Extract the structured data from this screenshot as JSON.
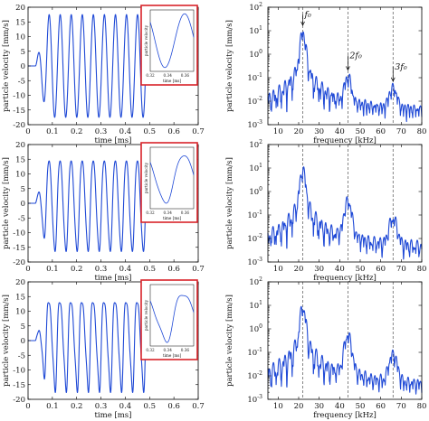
{
  "colors": {
    "trace": "#1f49d6",
    "inset_border": "#d8232a",
    "marker_lines": "#555555"
  },
  "chart_data": [
    {
      "type": "line",
      "row": 1,
      "panel": "time",
      "xlabel": "time [ms]",
      "ylabel": "particle velocity [mm/s]",
      "xlim": [
        0,
        0.7
      ],
      "ylim": [
        -20,
        20
      ],
      "xticks": [
        "0",
        "0.1",
        "0.2",
        "0.3",
        "0.4",
        "0.5",
        "0.6",
        "0.7"
      ],
      "yticks": [
        "20",
        "15",
        "10",
        "5",
        "0",
        "-5",
        "-10",
        "-15",
        "-20"
      ],
      "signal": {
        "onset_ms": 0.03,
        "end_ms": 0.51,
        "frequency_khz": 22,
        "amplitude": 17.5,
        "distortion": 0.0
      },
      "inset": {
        "ylabel": "particle velocity",
        "xlabel": "time [ms]",
        "xticks": [
          "0.32",
          "0.34",
          "0.36"
        ],
        "xlim": [
          0.32,
          0.37
        ]
      }
    },
    {
      "type": "line",
      "row": 1,
      "panel": "spectrum",
      "xlabel": "frequency [kHz]",
      "ylabel": "particle velocity [mm/s]",
      "xlim": [
        5,
        80
      ],
      "ylim_log10": [
        -3,
        2
      ],
      "xticks": [
        "10",
        "20",
        "30",
        "40",
        "50",
        "60",
        "70",
        "80"
      ],
      "yticks": [
        {
          "base": "10",
          "exp": "2"
        },
        {
          "base": "10",
          "exp": "1"
        },
        {
          "base": "10",
          "exp": "0"
        },
        {
          "base": "10",
          "exp": "-1"
        },
        {
          "base": "10",
          "exp": "-2"
        },
        {
          "base": "10",
          "exp": "-3"
        }
      ],
      "peaks": [
        {
          "freq_khz": 22,
          "value": 12
        },
        {
          "freq_khz": 44,
          "value": 0.15
        },
        {
          "freq_khz": 66,
          "value": 0.05
        }
      ],
      "annotations": [
        {
          "text": "f₀",
          "freq_khz": 22
        },
        {
          "text": "2f₀",
          "freq_khz": 44
        },
        {
          "text": "3f₀",
          "freq_khz": 66
        }
      ],
      "marker_lines_khz": [
        22,
        44,
        66
      ]
    },
    {
      "type": "line",
      "row": 2,
      "panel": "time",
      "xlabel": "time [ms]",
      "ylabel": "particle velocity [mm/s]",
      "xlim": [
        0,
        0.7
      ],
      "ylim": [
        -20,
        20
      ],
      "xticks": [
        "0",
        "0.1",
        "0.2",
        "0.3",
        "0.4",
        "0.5",
        "0.6",
        "0.7"
      ],
      "yticks": [
        "20",
        "15",
        "10",
        "5",
        "0",
        "-5",
        "-10",
        "-15",
        "-20"
      ],
      "signal": {
        "onset_ms": 0.03,
        "end_ms": 0.51,
        "frequency_khz": 22,
        "amplitude": 15.5,
        "distortion": 0.25
      },
      "inset": {
        "ylabel": "particle velocity",
        "xlabel": "time [ms]",
        "xticks": [
          "0.32",
          "0.34",
          "0.36"
        ],
        "xlim": [
          0.32,
          0.37
        ]
      }
    },
    {
      "type": "line",
      "row": 2,
      "panel": "spectrum",
      "xlabel": "frequency [kHz]",
      "ylabel": "particle velocity [mm/s]",
      "xlim": [
        5,
        80
      ],
      "ylim_log10": [
        -3,
        2
      ],
      "xticks": [
        "10",
        "20",
        "30",
        "40",
        "50",
        "60",
        "70",
        "80"
      ],
      "yticks": [
        {
          "base": "10",
          "exp": "2"
        },
        {
          "base": "10",
          "exp": "1"
        },
        {
          "base": "10",
          "exp": "0"
        },
        {
          "base": "10",
          "exp": "-1"
        },
        {
          "base": "10",
          "exp": "-2"
        },
        {
          "base": "10",
          "exp": "-3"
        }
      ],
      "peaks": [
        {
          "freq_khz": 22,
          "value": 12
        },
        {
          "freq_khz": 44,
          "value": 0.6
        },
        {
          "freq_khz": 66,
          "value": 0.1
        }
      ],
      "marker_lines_khz": [
        22,
        44,
        66
      ]
    },
    {
      "type": "line",
      "row": 3,
      "panel": "time",
      "xlabel": "time [ms]",
      "ylabel": "particle velocity [mm/s]",
      "xlim": [
        0,
        0.7
      ],
      "ylim": [
        -20,
        20
      ],
      "xticks": [
        "0",
        "0.1",
        "0.2",
        "0.3",
        "0.4",
        "0.5",
        "0.6",
        "0.7"
      ],
      "yticks": [
        "20",
        "15",
        "10",
        "5",
        "0",
        "-5",
        "-10",
        "-15",
        "-20"
      ],
      "signal": {
        "onset_ms": 0.03,
        "end_ms": 0.51,
        "frequency_khz": 22,
        "amplitude": 15.0,
        "distortion": 0.55
      },
      "inset": {
        "ylabel": "particle velocity",
        "xlabel": "time [ms]",
        "xticks": [
          "0.32",
          "0.34",
          "0.36"
        ],
        "xlim": [
          0.32,
          0.37
        ]
      }
    },
    {
      "type": "line",
      "row": 3,
      "panel": "spectrum",
      "xlabel": "frequency [kHz]",
      "ylabel": "particle velocity [mm/s]",
      "xlim": [
        5,
        80
      ],
      "ylim_log10": [
        -3,
        2
      ],
      "xticks": [
        "10",
        "20",
        "30",
        "40",
        "50",
        "60",
        "70",
        "80"
      ],
      "yticks": [
        {
          "base": "10",
          "exp": "2"
        },
        {
          "base": "10",
          "exp": "1"
        },
        {
          "base": "10",
          "exp": "0"
        },
        {
          "base": "10",
          "exp": "-1"
        },
        {
          "base": "10",
          "exp": "-2"
        },
        {
          "base": "10",
          "exp": "-3"
        }
      ],
      "peaks": [
        {
          "freq_khz": 22,
          "value": 12
        },
        {
          "freq_khz": 44,
          "value": 0.8
        },
        {
          "freq_khz": 66,
          "value": 0.12
        }
      ],
      "marker_lines_khz": [
        22,
        44,
        66
      ]
    }
  ]
}
